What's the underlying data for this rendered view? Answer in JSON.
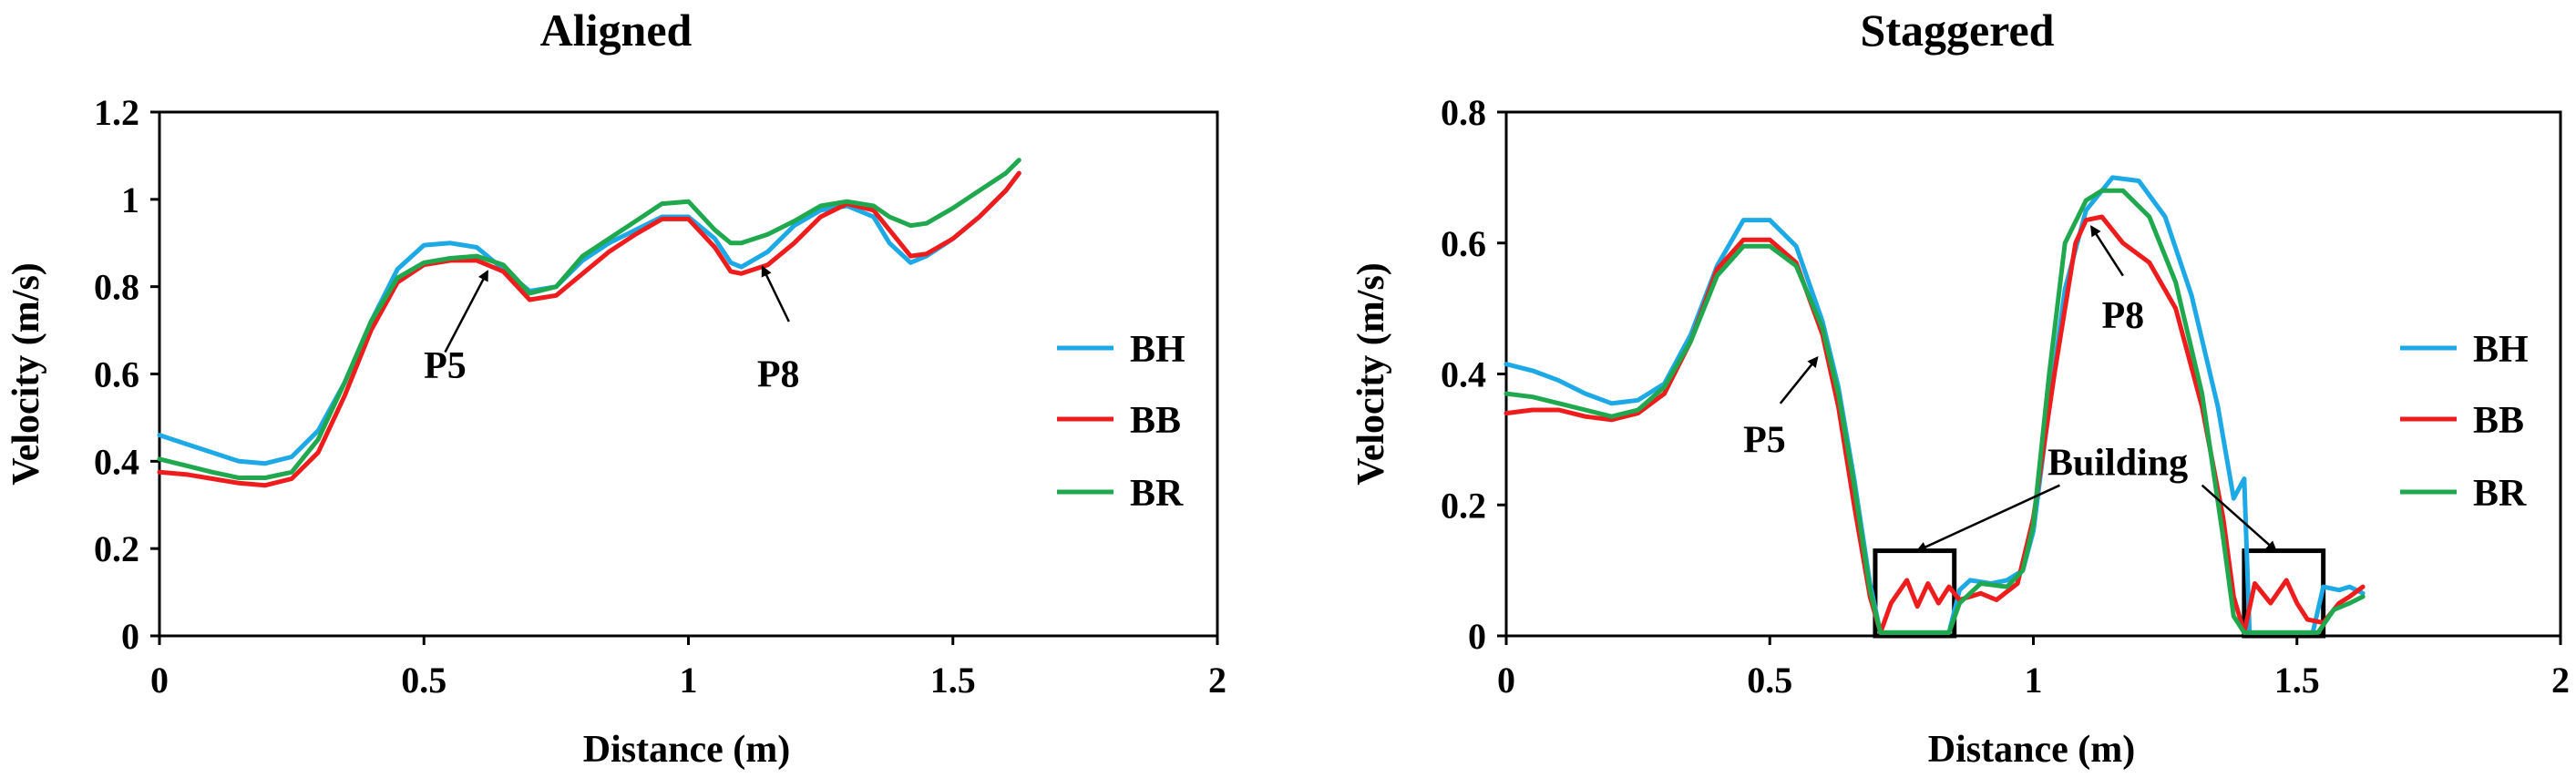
{
  "chart_data": [
    {
      "type": "line",
      "title": "Aligned",
      "xlabel": "Distance (m)",
      "ylabel": "Velocity (m/s)",
      "xlim": [
        0,
        2
      ],
      "ylim": [
        0,
        1.2
      ],
      "xticks": [
        "0",
        "0.5",
        "1",
        "1.5",
        "2"
      ],
      "yticks": [
        "0",
        "0.2",
        "0.4",
        "0.6",
        "0.8",
        "1",
        "1.2"
      ],
      "legend_position": "right",
      "series": [
        {
          "name": "BH",
          "color": "#1ca9e6",
          "points": [
            [
              0,
              0.46
            ],
            [
              0.05,
              0.44
            ],
            [
              0.1,
              0.42
            ],
            [
              0.15,
              0.4
            ],
            [
              0.2,
              0.395
            ],
            [
              0.25,
              0.41
            ],
            [
              0.3,
              0.47
            ],
            [
              0.35,
              0.58
            ],
            [
              0.4,
              0.72
            ],
            [
              0.45,
              0.84
            ],
            [
              0.5,
              0.895
            ],
            [
              0.55,
              0.9
            ],
            [
              0.6,
              0.89
            ],
            [
              0.65,
              0.84
            ],
            [
              0.7,
              0.79
            ],
            [
              0.75,
              0.8
            ],
            [
              0.8,
              0.86
            ],
            [
              0.85,
              0.9
            ],
            [
              0.9,
              0.93
            ],
            [
              0.95,
              0.96
            ],
            [
              1.0,
              0.96
            ],
            [
              1.05,
              0.91
            ],
            [
              1.08,
              0.855
            ],
            [
              1.1,
              0.845
            ],
            [
              1.15,
              0.88
            ],
            [
              1.2,
              0.94
            ],
            [
              1.25,
              0.975
            ],
            [
              1.3,
              0.985
            ],
            [
              1.35,
              0.96
            ],
            [
              1.38,
              0.9
            ],
            [
              1.42,
              0.855
            ],
            [
              1.45,
              0.87
            ],
            [
              1.5,
              0.91
            ],
            [
              1.55,
              0.96
            ],
            [
              1.6,
              1.02
            ],
            [
              1.625,
              1.06
            ]
          ]
        },
        {
          "name": "BB",
          "color": "#ee1c1c",
          "points": [
            [
              0,
              0.375
            ],
            [
              0.05,
              0.37
            ],
            [
              0.1,
              0.36
            ],
            [
              0.15,
              0.35
            ],
            [
              0.2,
              0.345
            ],
            [
              0.25,
              0.36
            ],
            [
              0.3,
              0.42
            ],
            [
              0.35,
              0.55
            ],
            [
              0.4,
              0.7
            ],
            [
              0.45,
              0.81
            ],
            [
              0.5,
              0.85
            ],
            [
              0.55,
              0.86
            ],
            [
              0.6,
              0.86
            ],
            [
              0.65,
              0.835
            ],
            [
              0.7,
              0.77
            ],
            [
              0.75,
              0.78
            ],
            [
              0.8,
              0.83
            ],
            [
              0.85,
              0.88
            ],
            [
              0.9,
              0.92
            ],
            [
              0.95,
              0.955
            ],
            [
              1.0,
              0.955
            ],
            [
              1.05,
              0.89
            ],
            [
              1.08,
              0.835
            ],
            [
              1.1,
              0.83
            ],
            [
              1.15,
              0.85
            ],
            [
              1.2,
              0.9
            ],
            [
              1.25,
              0.96
            ],
            [
              1.3,
              0.99
            ],
            [
              1.35,
              0.975
            ],
            [
              1.38,
              0.93
            ],
            [
              1.42,
              0.87
            ],
            [
              1.45,
              0.875
            ],
            [
              1.5,
              0.91
            ],
            [
              1.55,
              0.96
            ],
            [
              1.6,
              1.02
            ],
            [
              1.625,
              1.06
            ]
          ]
        },
        {
          "name": "BR",
          "color": "#1fa84d",
          "points": [
            [
              0,
              0.405
            ],
            [
              0.05,
              0.39
            ],
            [
              0.1,
              0.375
            ],
            [
              0.15,
              0.362
            ],
            [
              0.2,
              0.362
            ],
            [
              0.25,
              0.375
            ],
            [
              0.3,
              0.45
            ],
            [
              0.35,
              0.58
            ],
            [
              0.4,
              0.72
            ],
            [
              0.45,
              0.82
            ],
            [
              0.5,
              0.855
            ],
            [
              0.55,
              0.865
            ],
            [
              0.6,
              0.87
            ],
            [
              0.65,
              0.85
            ],
            [
              0.7,
              0.785
            ],
            [
              0.75,
              0.8
            ],
            [
              0.8,
              0.87
            ],
            [
              0.85,
              0.91
            ],
            [
              0.9,
              0.95
            ],
            [
              0.95,
              0.99
            ],
            [
              1.0,
              0.995
            ],
            [
              1.05,
              0.93
            ],
            [
              1.08,
              0.9
            ],
            [
              1.1,
              0.9
            ],
            [
              1.15,
              0.92
            ],
            [
              1.2,
              0.95
            ],
            [
              1.25,
              0.985
            ],
            [
              1.3,
              0.995
            ],
            [
              1.35,
              0.985
            ],
            [
              1.38,
              0.96
            ],
            [
              1.42,
              0.94
            ],
            [
              1.45,
              0.945
            ],
            [
              1.5,
              0.98
            ],
            [
              1.55,
              1.02
            ],
            [
              1.6,
              1.06
            ],
            [
              1.625,
              1.09
            ]
          ]
        }
      ],
      "annotations": [
        {
          "text": "P5",
          "x": 0.54,
          "y": 0.62
        },
        {
          "text": "P8",
          "x": 1.17,
          "y": 0.6
        }
      ]
    },
    {
      "type": "line",
      "title": "Staggered",
      "xlabel": "Distance (m)",
      "ylabel": "Velocity (m/s)",
      "xlim": [
        0,
        2
      ],
      "ylim": [
        0,
        0.8
      ],
      "xticks": [
        "0",
        "0.5",
        "1",
        "1.5",
        "2"
      ],
      "yticks": [
        "0",
        "0.2",
        "0.4",
        "0.6",
        "0.8"
      ],
      "legend_position": "right",
      "series": [
        {
          "name": "BH",
          "color": "#1ca9e6",
          "points": [
            [
              0,
              0.415
            ],
            [
              0.05,
              0.405
            ],
            [
              0.1,
              0.39
            ],
            [
              0.15,
              0.37
            ],
            [
              0.2,
              0.355
            ],
            [
              0.25,
              0.36
            ],
            [
              0.3,
              0.385
            ],
            [
              0.35,
              0.46
            ],
            [
              0.4,
              0.565
            ],
            [
              0.45,
              0.635
            ],
            [
              0.5,
              0.635
            ],
            [
              0.55,
              0.595
            ],
            [
              0.6,
              0.48
            ],
            [
              0.63,
              0.38
            ],
            [
              0.66,
              0.24
            ],
            [
              0.69,
              0.08
            ],
            [
              0.71,
              0.005
            ],
            [
              0.75,
              0.005
            ],
            [
              0.8,
              0.005
            ],
            [
              0.84,
              0.005
            ],
            [
              0.86,
              0.07
            ],
            [
              0.88,
              0.085
            ],
            [
              0.92,
              0.08
            ],
            [
              0.95,
              0.085
            ],
            [
              0.98,
              0.1
            ],
            [
              1.0,
              0.16
            ],
            [
              1.03,
              0.35
            ],
            [
              1.06,
              0.53
            ],
            [
              1.1,
              0.65
            ],
            [
              1.15,
              0.7
            ],
            [
              1.2,
              0.695
            ],
            [
              1.25,
              0.64
            ],
            [
              1.3,
              0.52
            ],
            [
              1.35,
              0.35
            ],
            [
              1.38,
              0.21
            ],
            [
              1.4,
              0.24
            ],
            [
              1.41,
              0.005
            ],
            [
              1.45,
              0.005
            ],
            [
              1.5,
              0.005
            ],
            [
              1.53,
              0.005
            ],
            [
              1.55,
              0.075
            ],
            [
              1.58,
              0.07
            ],
            [
              1.6,
              0.075
            ],
            [
              1.625,
              0.065
            ]
          ]
        },
        {
          "name": "BB",
          "color": "#ee1c1c",
          "points": [
            [
              0,
              0.34
            ],
            [
              0.05,
              0.345
            ],
            [
              0.1,
              0.345
            ],
            [
              0.15,
              0.335
            ],
            [
              0.2,
              0.33
            ],
            [
              0.25,
              0.34
            ],
            [
              0.3,
              0.37
            ],
            [
              0.35,
              0.45
            ],
            [
              0.4,
              0.56
            ],
            [
              0.45,
              0.605
            ],
            [
              0.5,
              0.605
            ],
            [
              0.55,
              0.57
            ],
            [
              0.6,
              0.46
            ],
            [
              0.63,
              0.35
            ],
            [
              0.66,
              0.2
            ],
            [
              0.69,
              0.06
            ],
            [
              0.71,
              0.005
            ],
            [
              0.73,
              0.05
            ],
            [
              0.76,
              0.085
            ],
            [
              0.78,
              0.045
            ],
            [
              0.8,
              0.08
            ],
            [
              0.82,
              0.05
            ],
            [
              0.84,
              0.075
            ],
            [
              0.86,
              0.055
            ],
            [
              0.9,
              0.065
            ],
            [
              0.93,
              0.055
            ],
            [
              0.97,
              0.08
            ],
            [
              1.0,
              0.18
            ],
            [
              1.04,
              0.4
            ],
            [
              1.08,
              0.6
            ],
            [
              1.1,
              0.635
            ],
            [
              1.13,
              0.64
            ],
            [
              1.17,
              0.6
            ],
            [
              1.22,
              0.57
            ],
            [
              1.27,
              0.5
            ],
            [
              1.32,
              0.35
            ],
            [
              1.36,
              0.18
            ],
            [
              1.38,
              0.06
            ],
            [
              1.4,
              0.005
            ],
            [
              1.42,
              0.08
            ],
            [
              1.45,
              0.05
            ],
            [
              1.48,
              0.085
            ],
            [
              1.5,
              0.05
            ],
            [
              1.52,
              0.025
            ],
            [
              1.55,
              0.02
            ],
            [
              1.58,
              0.05
            ],
            [
              1.6,
              0.06
            ],
            [
              1.625,
              0.075
            ]
          ]
        },
        {
          "name": "BR",
          "color": "#1fa84d",
          "points": [
            [
              0,
              0.37
            ],
            [
              0.05,
              0.365
            ],
            [
              0.1,
              0.355
            ],
            [
              0.15,
              0.345
            ],
            [
              0.2,
              0.335
            ],
            [
              0.25,
              0.345
            ],
            [
              0.3,
              0.38
            ],
            [
              0.35,
              0.45
            ],
            [
              0.4,
              0.55
            ],
            [
              0.45,
              0.595
            ],
            [
              0.5,
              0.595
            ],
            [
              0.55,
              0.565
            ],
            [
              0.6,
              0.47
            ],
            [
              0.63,
              0.37
            ],
            [
              0.66,
              0.23
            ],
            [
              0.69,
              0.07
            ],
            [
              0.71,
              0.005
            ],
            [
              0.75,
              0.005
            ],
            [
              0.8,
              0.005
            ],
            [
              0.84,
              0.005
            ],
            [
              0.86,
              0.05
            ],
            [
              0.9,
              0.08
            ],
            [
              0.95,
              0.075
            ],
            [
              0.98,
              0.1
            ],
            [
              1.0,
              0.17
            ],
            [
              1.03,
              0.4
            ],
            [
              1.06,
              0.6
            ],
            [
              1.1,
              0.665
            ],
            [
              1.13,
              0.68
            ],
            [
              1.17,
              0.68
            ],
            [
              1.22,
              0.64
            ],
            [
              1.27,
              0.54
            ],
            [
              1.32,
              0.37
            ],
            [
              1.36,
              0.15
            ],
            [
              1.38,
              0.03
            ],
            [
              1.4,
              0.005
            ],
            [
              1.45,
              0.005
            ],
            [
              1.5,
              0.005
            ],
            [
              1.54,
              0.005
            ],
            [
              1.57,
              0.04
            ],
            [
              1.6,
              0.05
            ],
            [
              1.625,
              0.06
            ]
          ]
        }
      ],
      "annotations": [
        {
          "text": "P5",
          "x": 0.49,
          "y": 0.3
        },
        {
          "text": "P8",
          "x": 1.17,
          "y": 0.49
        },
        {
          "text": "Building",
          "x": 1.16,
          "y": 0.265
        }
      ]
    }
  ]
}
